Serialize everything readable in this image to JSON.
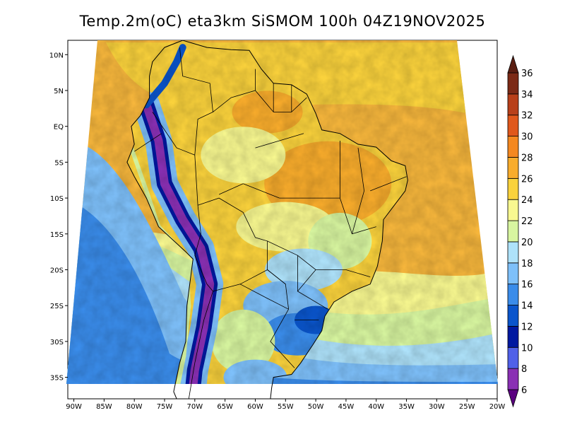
{
  "title": "Temp.2m(oC) eta3km SiSMOM 100h 04Z19NOV2025",
  "map": {
    "lon_min": -91,
    "lon_max": -20,
    "lat_min": -38,
    "lat_max": 12,
    "lon_ticks": [
      {
        "value": -90,
        "label": "90W"
      },
      {
        "value": -85,
        "label": "85W"
      },
      {
        "value": -80,
        "label": "80W"
      },
      {
        "value": -75,
        "label": "75W"
      },
      {
        "value": -70,
        "label": "70W"
      },
      {
        "value": -65,
        "label": "65W"
      },
      {
        "value": -60,
        "label": "60W"
      },
      {
        "value": -55,
        "label": "55W"
      },
      {
        "value": -50,
        "label": "50W"
      },
      {
        "value": -45,
        "label": "45W"
      },
      {
        "value": -40,
        "label": "40W"
      },
      {
        "value": -35,
        "label": "35W"
      },
      {
        "value": -30,
        "label": "30W"
      },
      {
        "value": -25,
        "label": "25W"
      },
      {
        "value": -20,
        "label": "20W"
      }
    ],
    "lat_ticks": [
      {
        "value": 10,
        "label": "10N"
      },
      {
        "value": 5,
        "label": "5N"
      },
      {
        "value": 0,
        "label": "EQ"
      },
      {
        "value": -5,
        "label": "5S"
      },
      {
        "value": -10,
        "label": "10S"
      },
      {
        "value": -15,
        "label": "15S"
      },
      {
        "value": -20,
        "label": "20S"
      },
      {
        "value": -25,
        "label": "25S"
      },
      {
        "value": -30,
        "label": "30S"
      },
      {
        "value": -35,
        "label": "35S"
      }
    ]
  },
  "colorbar": {
    "levels": [
      6,
      8,
      10,
      12,
      14,
      16,
      18,
      20,
      22,
      24,
      26,
      28,
      30,
      32,
      34,
      36
    ],
    "labels": [
      "6",
      "8",
      "10",
      "12",
      "14",
      "16",
      "18",
      "20",
      "22",
      "24",
      "26",
      "28",
      "30",
      "32",
      "34",
      "36"
    ],
    "colors": [
      "#5a0080",
      "#8a30b4",
      "#5060e8",
      "#0018a0",
      "#0a55cc",
      "#3a8cea",
      "#7ec0fa",
      "#aee2fa",
      "#d8f6a0",
      "#f8f890",
      "#fad23c",
      "#f8ac2c",
      "#f48820",
      "#e0581c",
      "#b8401a",
      "#7c2a16",
      "#5a1e12"
    ]
  }
}
